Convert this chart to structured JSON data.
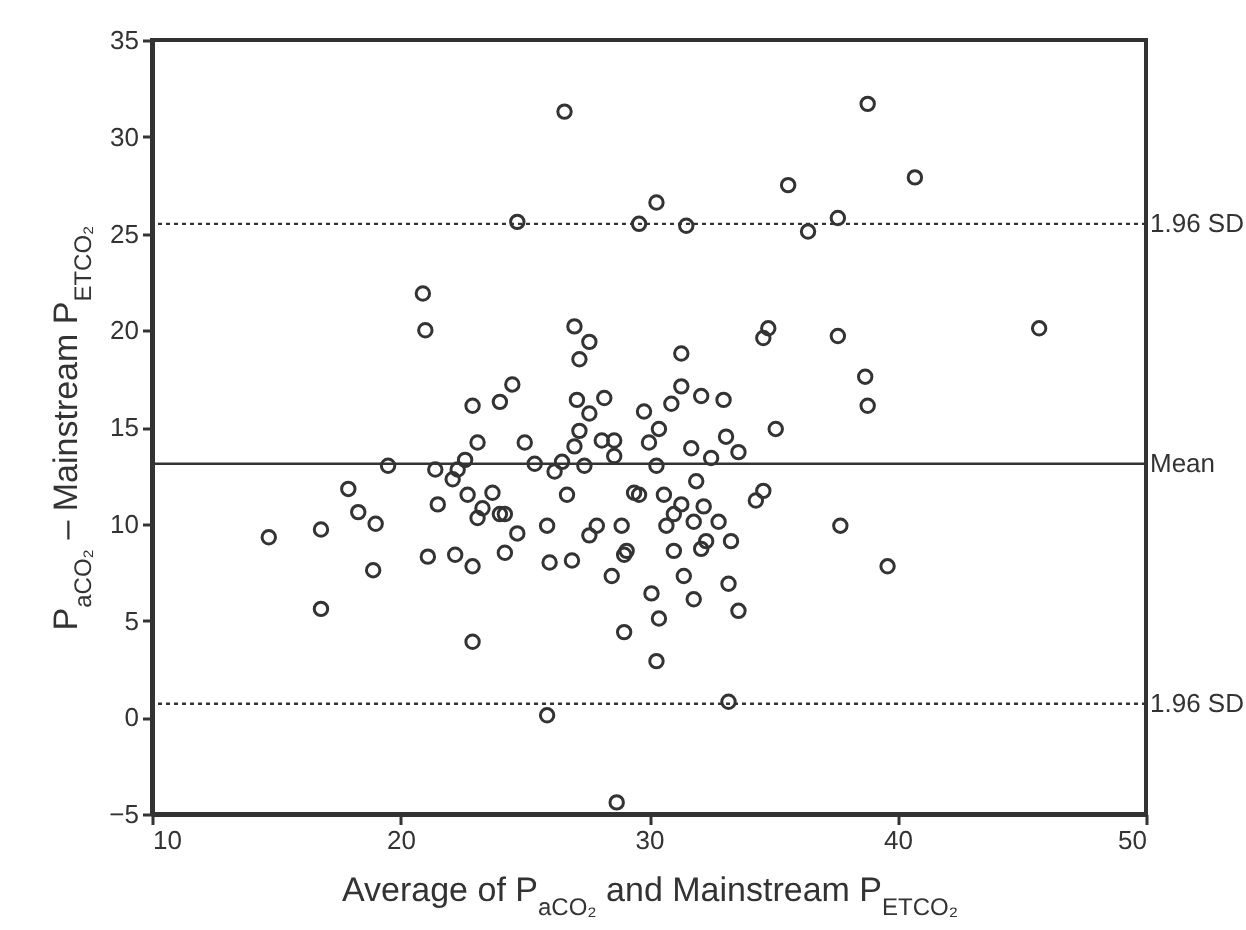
{
  "chart_data": {
    "type": "scatter",
    "xlabel": "Average of P$_{aCO₂}$ and Mainstream P$_{ETCO₂}$",
    "ylabel": "P$_{aCO₂}$ – Mainstream P$_{ETCO₂}$",
    "x": [
      14.7,
      16.8,
      16.8,
      17.9,
      18.3,
      19.0,
      18.9,
      19.5,
      21.4,
      21.5,
      21.1,
      22.1,
      22.3,
      22.6,
      22.7,
      22.2,
      22.9,
      22.9,
      23.1,
      23.3,
      23.7,
      24.0,
      24.2,
      24.2,
      24.7,
      25.0,
      25.4,
      23.1,
      22.9,
      24.0,
      25.9,
      26.0,
      25.9,
      26.2,
      26.5,
      26.7,
      26.9,
      27.0,
      27.2,
      27.4,
      27.6,
      27.1,
      27.9,
      27.6,
      28.1,
      28.6,
      28.5,
      28.9,
      29.0,
      29.0,
      28.7,
      26.6,
      24.7,
      20.9,
      21.0,
      27.0,
      27.6,
      27.2,
      24.5,
      28.2,
      38.8,
      40.7,
      35.6,
      30.3,
      29.6,
      31.5,
      36.4,
      37.6,
      34.8,
      34.6,
      37.6,
      45.7,
      31.3,
      31.3,
      32.1,
      30.9,
      33.0,
      29.8,
      38.7,
      38.8,
      35.1,
      30.4,
      30.0,
      33.1,
      31.7,
      33.6,
      32.5,
      30.3,
      29.6,
      30.6,
      31.3,
      31.9,
      32.2,
      31.0,
      30.7,
      31.8,
      32.8,
      29.1,
      31.0,
      32.3,
      32.1,
      33.3,
      31.4,
      33.2,
      30.1,
      31.8,
      33.6,
      30.4,
      30.3,
      33.2,
      34.3,
      34.6,
      37.7,
      39.6,
      29.4,
      28.6
    ],
    "values": [
      9.3,
      9.7,
      5.6,
      11.8,
      10.6,
      10.0,
      7.6,
      13.0,
      12.8,
      11.0,
      8.3,
      12.3,
      12.8,
      13.3,
      11.5,
      8.4,
      7.8,
      3.9,
      10.3,
      10.8,
      11.6,
      10.5,
      10.5,
      8.5,
      9.5,
      14.2,
      13.1,
      14.2,
      16.1,
      16.3,
      9.9,
      8.0,
      0.1,
      12.7,
      13.2,
      11.5,
      8.1,
      14.0,
      14.8,
      13.0,
      15.7,
      16.4,
      9.9,
      9.4,
      14.3,
      13.5,
      7.3,
      9.9,
      8.4,
      4.4,
      -4.4,
      31.3,
      25.6,
      21.9,
      20.0,
      20.2,
      19.4,
      18.5,
      17.2,
      16.5,
      31.7,
      27.9,
      27.5,
      26.6,
      25.5,
      25.4,
      25.1,
      25.8,
      20.1,
      19.6,
      19.7,
      20.1,
      18.8,
      17.1,
      16.6,
      16.2,
      16.4,
      15.8,
      17.6,
      16.1,
      14.9,
      14.9,
      14.2,
      14.5,
      13.9,
      13.7,
      13.4,
      13.0,
      11.5,
      11.5,
      11.0,
      12.2,
      10.9,
      10.5,
      9.9,
      10.1,
      10.1,
      8.6,
      8.6,
      9.1,
      8.7,
      9.1,
      7.3,
      6.9,
      6.4,
      6.1,
      5.5,
      5.1,
      2.9,
      0.8,
      11.2,
      11.7,
      9.9,
      7.8,
      11.6,
      14.3
    ],
    "color": "#333333",
    "marker": "circle",
    "xlim": [
      10,
      50
    ],
    "xticks": [
      10,
      20,
      30,
      40,
      50
    ],
    "ylim": [
      -5,
      35
    ],
    "yticks": [
      -5,
      0,
      5,
      10,
      15,
      20,
      25,
      30,
      35
    ],
    "ref_lines": [
      {
        "axis": "y",
        "value": 25.5,
        "label": "1.96 SD",
        "line_style": "dotted"
      },
      {
        "axis": "y",
        "value": 13.1,
        "label": "Mean",
        "line_style": "solid"
      },
      {
        "axis": "y",
        "value": 0.7,
        "label": "1.96 SD",
        "line_style": "dotted"
      }
    ]
  }
}
